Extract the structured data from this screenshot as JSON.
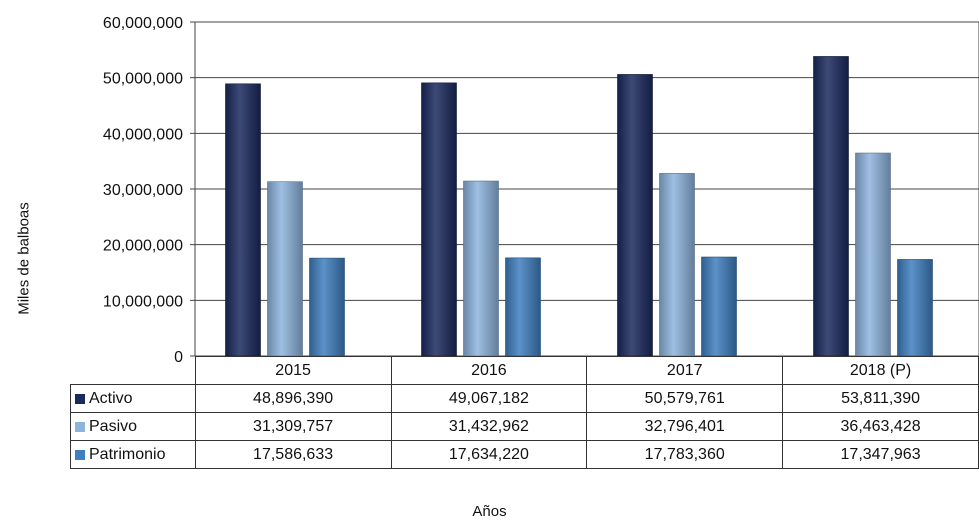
{
  "chart_data": {
    "type": "bar",
    "categories": [
      "2015",
      "2016",
      "2017",
      "2018 (P)"
    ],
    "series": [
      {
        "name": "Activo",
        "values": [
          48896390,
          49067182,
          50579761,
          53811390
        ],
        "color": "#1b2a5e"
      },
      {
        "name": "Pasivo",
        "values": [
          31309757,
          31432962,
          32796401,
          36463428
        ],
        "color": "#8eb4de"
      },
      {
        "name": "Patrimonio",
        "values": [
          17586633,
          17634220,
          17783360,
          17347963
        ],
        "color": "#3f7fc0"
      }
    ],
    "value_labels": [
      [
        "48,896,390",
        "49,067,182",
        "50,579,761",
        "53,811,390"
      ],
      [
        "31,309,757",
        "31,432,962",
        "32,796,401",
        "36,463,428"
      ],
      [
        "17,586,633",
        "17,634,220",
        "17,783,360",
        "17,347,963"
      ]
    ],
    "ylim": [
      0,
      60000000
    ],
    "yticks": [
      "0",
      "10,000,000",
      "20,000,000",
      "30,000,000",
      "40,000,000",
      "50,000,000",
      "60,000,000"
    ],
    "xlabel": "Años",
    "ylabel": "Miles de balboas",
    "grid": true,
    "legend": "data-table-below"
  }
}
